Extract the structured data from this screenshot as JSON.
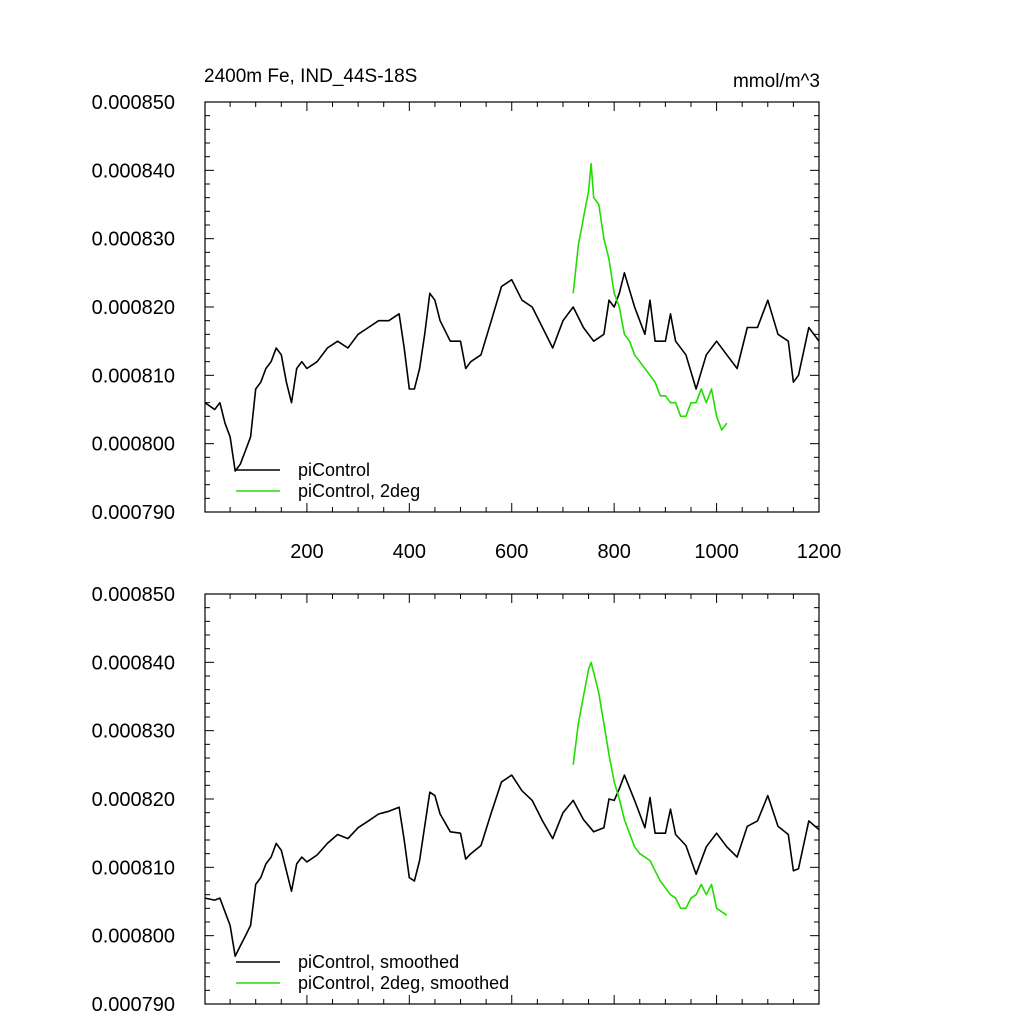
{
  "figure": {
    "title_left": "2400m Fe, IND_44S-18S",
    "title_right": "mmol/m^3"
  },
  "colors": {
    "black_series": "#000000",
    "green_series": "#22dd00"
  },
  "chart_data": [
    {
      "type": "line",
      "title": "2400m Fe, IND_44S-18S",
      "units": "mmol/m^3",
      "xlim": [
        1,
        1200
      ],
      "ylim": [
        0.00079,
        0.00085
      ],
      "x_ticks": [
        200,
        400,
        600,
        800,
        1000,
        1200
      ],
      "x_tick_labels": [
        "200",
        "400",
        "600",
        "800",
        "1000",
        "1200"
      ],
      "y_ticks": [
        0.00079,
        0.0008,
        0.00081,
        0.00082,
        0.00083,
        0.00084,
        0.00085
      ],
      "y_tick_labels": [
        "0.000790",
        "0.000800",
        "0.000810",
        "0.000820",
        "0.000830",
        "0.000840",
        "0.000850"
      ],
      "legend": [
        "piControl",
        "piControl, 2deg"
      ],
      "series": [
        {
          "name": "piControl",
          "color": "#000000",
          "x": [
            1,
            20,
            30,
            40,
            50,
            60,
            70,
            80,
            90,
            100,
            110,
            120,
            130,
            140,
            150,
            160,
            170,
            180,
            190,
            200,
            220,
            240,
            260,
            280,
            300,
            320,
            340,
            360,
            380,
            390,
            400,
            410,
            420,
            430,
            440,
            450,
            460,
            480,
            500,
            510,
            520,
            540,
            560,
            580,
            600,
            620,
            640,
            660,
            680,
            700,
            720,
            740,
            760,
            780,
            790,
            800,
            810,
            820,
            840,
            860,
            870,
            880,
            900,
            910,
            920,
            940,
            960,
            980,
            1000,
            1020,
            1040,
            1060,
            1080,
            1100,
            1120,
            1140,
            1150,
            1160,
            1180,
            1200
          ],
          "values": [
            0.000806,
            0.000805,
            0.000806,
            0.000803,
            0.000801,
            0.000796,
            0.000797,
            0.000799,
            0.000801,
            0.000808,
            0.000809,
            0.000811,
            0.000812,
            0.000814,
            0.000813,
            0.000809,
            0.000806,
            0.000811,
            0.000812,
            0.000811,
            0.000812,
            0.000814,
            0.000815,
            0.000814,
            0.000816,
            0.000817,
            0.000818,
            0.000818,
            0.000819,
            0.000814,
            0.000808,
            0.000808,
            0.000811,
            0.000816,
            0.000822,
            0.000821,
            0.000818,
            0.000815,
            0.000815,
            0.000811,
            0.000812,
            0.000813,
            0.000818,
            0.000823,
            0.000824,
            0.000821,
            0.00082,
            0.000817,
            0.000814,
            0.000818,
            0.00082,
            0.000817,
            0.000815,
            0.000816,
            0.000821,
            0.00082,
            0.000822,
            0.000825,
            0.00082,
            0.000816,
            0.000821,
            0.000815,
            0.000815,
            0.000819,
            0.000815,
            0.000813,
            0.000808,
            0.000813,
            0.000815,
            0.000813,
            0.000811,
            0.000817,
            0.000817,
            0.000821,
            0.000816,
            0.000815,
            0.000809,
            0.00081,
            0.000817,
            0.000815
          ]
        },
        {
          "name": "piControl, 2deg",
          "color": "#22dd00",
          "x": [
            720,
            730,
            740,
            750,
            755,
            760,
            770,
            780,
            790,
            800,
            810,
            820,
            830,
            840,
            850,
            860,
            870,
            880,
            890,
            900,
            910,
            920,
            930,
            940,
            950,
            960,
            970,
            980,
            990,
            1000,
            1010,
            1020
          ],
          "values": [
            0.000822,
            0.000829,
            0.000833,
            0.000837,
            0.000841,
            0.000836,
            0.000835,
            0.00083,
            0.000827,
            0.000822,
            0.00082,
            0.000816,
            0.000815,
            0.000813,
            0.000812,
            0.000811,
            0.00081,
            0.000809,
            0.000807,
            0.000807,
            0.000806,
            0.000806,
            0.000804,
            0.000804,
            0.000806,
            0.000806,
            0.000808,
            0.000806,
            0.000808,
            0.000804,
            0.000802,
            0.000803
          ]
        }
      ]
    },
    {
      "type": "line",
      "xlim": [
        1,
        1200
      ],
      "ylim": [
        0.00079,
        0.00085
      ],
      "x_ticks": [
        200,
        400,
        600,
        800,
        1000,
        1200
      ],
      "x_tick_labels": [],
      "y_ticks": [
        0.00079,
        0.0008,
        0.00081,
        0.00082,
        0.00083,
        0.00084,
        0.00085
      ],
      "y_tick_labels": [
        "0.000790",
        "0.000800",
        "0.000810",
        "0.000820",
        "0.000830",
        "0.000840",
        "0.000850"
      ],
      "legend": [
        "piControl, smoothed",
        "piControl, 2deg, smoothed"
      ],
      "series": [
        {
          "name": "piControl, smoothed",
          "color": "#000000",
          "x": [
            1,
            20,
            30,
            40,
            50,
            60,
            70,
            80,
            90,
            100,
            110,
            120,
            130,
            140,
            150,
            160,
            170,
            180,
            190,
            200,
            220,
            240,
            260,
            280,
            300,
            320,
            340,
            360,
            380,
            390,
            400,
            410,
            420,
            430,
            440,
            450,
            460,
            480,
            500,
            510,
            520,
            540,
            560,
            580,
            600,
            620,
            640,
            660,
            680,
            700,
            720,
            740,
            760,
            780,
            790,
            800,
            810,
            820,
            840,
            860,
            870,
            880,
            900,
            910,
            920,
            940,
            960,
            980,
            1000,
            1020,
            1040,
            1060,
            1080,
            1100,
            1120,
            1140,
            1150,
            1160,
            1180,
            1200
          ],
          "values": [
            0.0008055,
            0.0008052,
            0.0008055,
            0.0008035,
            0.0008015,
            0.000797,
            0.0007985,
            0.0008,
            0.0008015,
            0.0008075,
            0.0008085,
            0.0008105,
            0.0008115,
            0.0008135,
            0.0008125,
            0.0008095,
            0.0008065,
            0.0008105,
            0.0008115,
            0.0008108,
            0.0008118,
            0.0008135,
            0.0008148,
            0.0008142,
            0.0008158,
            0.0008168,
            0.0008178,
            0.0008182,
            0.0008188,
            0.000814,
            0.0008085,
            0.000808,
            0.000811,
            0.000816,
            0.000821,
            0.0008205,
            0.0008178,
            0.0008152,
            0.000815,
            0.0008112,
            0.000812,
            0.0008132,
            0.000818,
            0.0008225,
            0.0008235,
            0.0008212,
            0.0008198,
            0.0008168,
            0.0008142,
            0.000818,
            0.0008198,
            0.000817,
            0.0008152,
            0.0008158,
            0.00082,
            0.0008198,
            0.0008215,
            0.0008235,
            0.0008198,
            0.0008158,
            0.0008202,
            0.000815,
            0.000815,
            0.0008185,
            0.0008148,
            0.0008132,
            0.000809,
            0.000813,
            0.000815,
            0.000813,
            0.0008115,
            0.000816,
            0.0008168,
            0.0008205,
            0.000816,
            0.0008148,
            0.0008095,
            0.0008098,
            0.0008168,
            0.0008155
          ]
        },
        {
          "name": "piControl, 2deg, smoothed",
          "color": "#22dd00",
          "x": [
            720,
            730,
            740,
            750,
            755,
            760,
            770,
            780,
            790,
            800,
            810,
            820,
            830,
            840,
            850,
            860,
            870,
            880,
            890,
            900,
            910,
            920,
            930,
            940,
            950,
            960,
            970,
            980,
            990,
            1000,
            1010,
            1020
          ],
          "values": [
            0.000825,
            0.000831,
            0.000835,
            0.000839,
            0.00084,
            0.0008385,
            0.0008355,
            0.000831,
            0.0008265,
            0.0008225,
            0.00082,
            0.000817,
            0.000815,
            0.000813,
            0.000812,
            0.0008115,
            0.000811,
            0.0008095,
            0.000808,
            0.000807,
            0.000806,
            0.0008055,
            0.000804,
            0.000804,
            0.0008055,
            0.000806,
            0.0008075,
            0.000806,
            0.0008075,
            0.000804,
            0.0008035,
            0.000803
          ]
        }
      ]
    }
  ]
}
